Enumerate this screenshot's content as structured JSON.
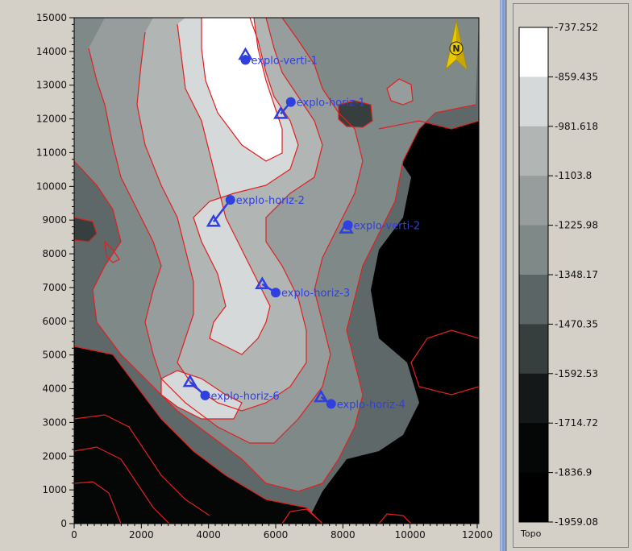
{
  "map": {
    "x_axis_ticks": [
      "0",
      "2000",
      "4000",
      "6000",
      "8000",
      "10000",
      "12000"
    ],
    "y_axis_ticks": [
      "0",
      "1000",
      "2000",
      "3000",
      "4000",
      "5000",
      "6000",
      "7000",
      "8000",
      "9000",
      "10000",
      "11000",
      "12000",
      "13000",
      "14000",
      "15000"
    ],
    "x_range": [
      0,
      12000
    ],
    "y_range": [
      0,
      15000
    ],
    "north_arrow_label": "N",
    "contour_color": "#e02020",
    "well_color": "#2f3fe0",
    "wells": [
      {
        "name": "explo-verti-1",
        "surface": [
          5100,
          13900
        ],
        "bottom": [
          5100,
          13750
        ]
      },
      {
        "name": "explo-horiz-1",
        "surface": [
          6150,
          12150
        ],
        "bottom": [
          6450,
          12500
        ]
      },
      {
        "name": "explo-horiz-2",
        "surface": [
          4150,
          8950
        ],
        "bottom": [
          4650,
          9600
        ]
      },
      {
        "name": "explo-verti-2",
        "surface": [
          8100,
          8750
        ],
        "bottom": [
          8150,
          8850
        ]
      },
      {
        "name": "explo-horiz-3",
        "surface": [
          5600,
          7100
        ],
        "bottom": [
          6000,
          6850
        ]
      },
      {
        "name": "explo-horiz-6",
        "surface": [
          3450,
          4200
        ],
        "bottom": [
          3900,
          3800
        ]
      },
      {
        "name": "explo-horiz-4",
        "surface": [
          7350,
          3750
        ],
        "bottom": [
          7650,
          3550
        ]
      }
    ]
  },
  "legend": {
    "title": "Topo",
    "labels": [
      "-737.252",
      "-859.435",
      "-981.618",
      "-1103.8",
      "-1225.98",
      "-1348.17",
      "-1470.35",
      "-1592.53",
      "-1714.72",
      "-1836.9",
      "-1959.08"
    ],
    "colors": [
      "#ffffff",
      "#d6d9d9",
      "#b1b6b5",
      "#969d9c",
      "#7f8988",
      "#5b6565",
      "#373e3e",
      "#151818",
      "#050606",
      "#000000"
    ]
  }
}
